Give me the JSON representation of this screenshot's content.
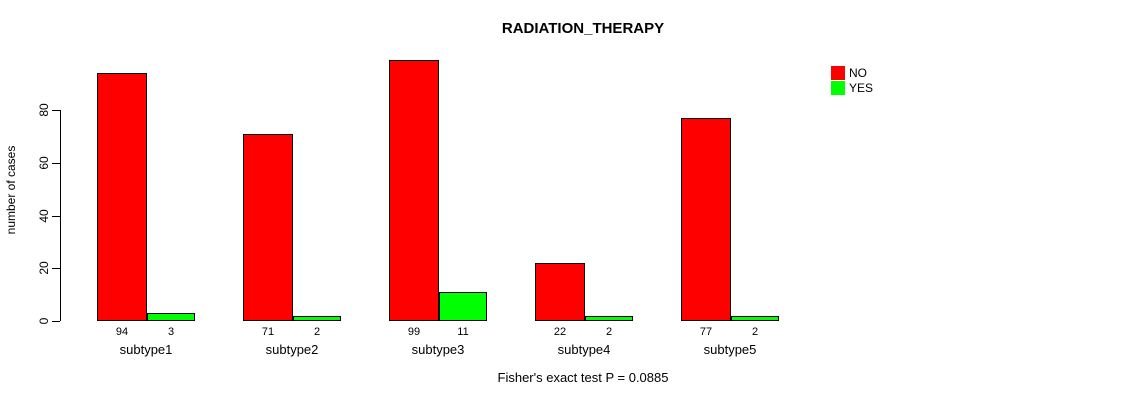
{
  "chart_data": {
    "type": "bar",
    "title": "RADIATION_THERAPY",
    "categories": [
      "subtype1",
      "subtype2",
      "subtype3",
      "subtype4",
      "subtype5"
    ],
    "series": [
      {
        "name": "NO",
        "color": "#FF0000",
        "values": [
          94,
          71,
          99,
          22,
          77
        ]
      },
      {
        "name": "YES",
        "color": "#00FF00",
        "values": [
          3,
          2,
          11,
          2,
          2
        ]
      }
    ],
    "xlabel": "",
    "ylabel": "number of cases",
    "yticks": [
      0,
      20,
      40,
      60,
      80
    ],
    "ylim": [
      0,
      105
    ],
    "grid": false,
    "legend_position": "top-right",
    "bar_value_labels": true,
    "annotation": "Fisher's exact test P = 0.0885"
  }
}
